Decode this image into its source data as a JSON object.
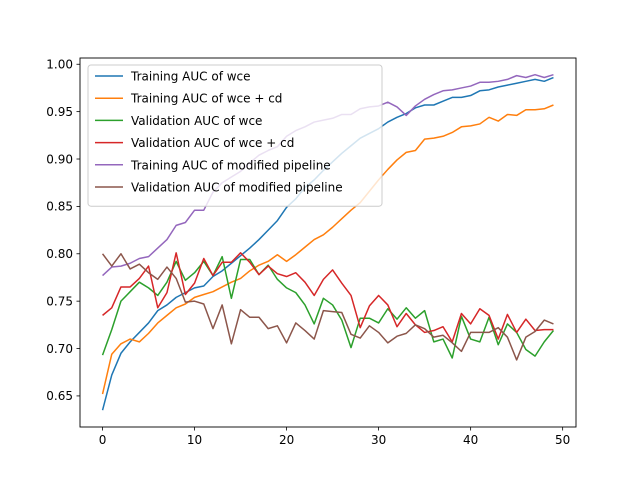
{
  "chart_data": {
    "type": "line",
    "title": "",
    "xlabel": "",
    "ylabel": "",
    "xlim": [
      -2.45,
      51.45
    ],
    "ylim": [
      0.6172,
      1.0066
    ],
    "xticks": [
      0,
      10,
      20,
      30,
      40,
      50
    ],
    "xtick_labels": [
      "0",
      "10",
      "20",
      "30",
      "40",
      "50"
    ],
    "yticks": [
      0.65,
      0.7,
      0.75,
      0.8,
      0.85,
      0.9,
      0.95,
      1.0
    ],
    "ytick_labels": [
      "0.65",
      "0.70",
      "0.75",
      "0.80",
      "0.85",
      "0.90",
      "0.95",
      "1.00"
    ],
    "grid": false,
    "legend_position": "upper-left",
    "x": [
      0,
      1,
      2,
      3,
      4,
      5,
      6,
      7,
      8,
      9,
      10,
      11,
      12,
      13,
      14,
      15,
      16,
      17,
      18,
      19,
      20,
      21,
      22,
      23,
      24,
      25,
      26,
      27,
      28,
      29,
      30,
      31,
      32,
      33,
      34,
      35,
      36,
      37,
      38,
      39,
      40,
      41,
      42,
      43,
      44,
      45,
      46,
      47,
      48,
      49
    ],
    "series": [
      {
        "name": "Training AUC of wce",
        "color": "#1f77b4",
        "values": [
          0.635,
          0.672,
          0.695,
          0.707,
          0.717,
          0.727,
          0.74,
          0.746,
          0.754,
          0.759,
          0.764,
          0.766,
          0.776,
          0.782,
          0.79,
          0.798,
          0.806,
          0.815,
          0.825,
          0.835,
          0.849,
          0.858,
          0.87,
          0.878,
          0.888,
          0.897,
          0.906,
          0.914,
          0.922,
          0.927,
          0.932,
          0.939,
          0.944,
          0.948,
          0.954,
          0.957,
          0.957,
          0.961,
          0.965,
          0.965,
          0.967,
          0.972,
          0.973,
          0.976,
          0.978,
          0.98,
          0.982,
          0.984,
          0.982,
          0.986
        ]
      },
      {
        "name": "Training AUC of wce + cd",
        "color": "#ff7f0e",
        "values": [
          0.652,
          0.694,
          0.705,
          0.71,
          0.707,
          0.716,
          0.727,
          0.735,
          0.743,
          0.747,
          0.754,
          0.757,
          0.76,
          0.765,
          0.77,
          0.774,
          0.782,
          0.788,
          0.792,
          0.799,
          0.792,
          0.799,
          0.807,
          0.815,
          0.82,
          0.828,
          0.837,
          0.846,
          0.854,
          0.866,
          0.878,
          0.889,
          0.899,
          0.907,
          0.909,
          0.921,
          0.922,
          0.924,
          0.928,
          0.934,
          0.935,
          0.937,
          0.944,
          0.94,
          0.947,
          0.946,
          0.952,
          0.952,
          0.953,
          0.957
        ]
      },
      {
        "name": "Validation AUC of wce",
        "color": "#2ca02c",
        "values": [
          0.693,
          0.72,
          0.75,
          0.76,
          0.77,
          0.764,
          0.756,
          0.77,
          0.792,
          0.772,
          0.78,
          0.792,
          0.777,
          0.797,
          0.753,
          0.794,
          0.794,
          0.778,
          0.788,
          0.773,
          0.764,
          0.759,
          0.746,
          0.726,
          0.753,
          0.746,
          0.73,
          0.701,
          0.732,
          0.732,
          0.727,
          0.742,
          0.731,
          0.743,
          0.732,
          0.74,
          0.707,
          0.71,
          0.69,
          0.734,
          0.71,
          0.707,
          0.733,
          0.704,
          0.726,
          0.717,
          0.699,
          0.692,
          0.707,
          0.719
        ]
      },
      {
        "name": "Validation AUC of wce + cd",
        "color": "#d62728",
        "values": [
          0.735,
          0.743,
          0.765,
          0.765,
          0.774,
          0.787,
          0.743,
          0.759,
          0.801,
          0.757,
          0.769,
          0.795,
          0.777,
          0.791,
          0.791,
          0.801,
          0.791,
          0.778,
          0.787,
          0.779,
          0.776,
          0.78,
          0.77,
          0.756,
          0.773,
          0.783,
          0.769,
          0.756,
          0.722,
          0.745,
          0.756,
          0.746,
          0.723,
          0.737,
          0.725,
          0.717,
          0.719,
          0.723,
          0.707,
          0.737,
          0.726,
          0.742,
          0.735,
          0.71,
          0.736,
          0.717,
          0.731,
          0.719,
          0.72,
          0.72
        ]
      },
      {
        "name": "Training AUC of modified pipeline",
        "color": "#9467bd",
        "values": [
          0.777,
          0.786,
          0.787,
          0.79,
          0.795,
          0.797,
          0.806,
          0.815,
          0.83,
          0.833,
          0.846,
          0.846,
          0.865,
          0.875,
          0.881,
          0.887,
          0.896,
          0.904,
          0.909,
          0.913,
          0.924,
          0.93,
          0.934,
          0.939,
          0.941,
          0.943,
          0.947,
          0.947,
          0.953,
          0.955,
          0.956,
          0.96,
          0.955,
          0.946,
          0.956,
          0.963,
          0.968,
          0.972,
          0.973,
          0.975,
          0.977,
          0.981,
          0.981,
          0.982,
          0.984,
          0.988,
          0.986,
          0.989,
          0.986,
          0.989
        ]
      },
      {
        "name": "Validation AUC of modified pipeline",
        "color": "#8c564b",
        "values": [
          0.8,
          0.787,
          0.8,
          0.784,
          0.789,
          0.78,
          0.773,
          0.786,
          0.774,
          0.749,
          0.75,
          0.747,
          0.721,
          0.746,
          0.705,
          0.741,
          0.733,
          0.733,
          0.721,
          0.724,
          0.706,
          0.727,
          0.719,
          0.71,
          0.74,
          0.739,
          0.738,
          0.715,
          0.711,
          0.724,
          0.717,
          0.706,
          0.713,
          0.716,
          0.725,
          0.721,
          0.712,
          0.714,
          0.706,
          0.697,
          0.717,
          0.717,
          0.717,
          0.722,
          0.712,
          0.688,
          0.712,
          0.718,
          0.73,
          0.726
        ]
      }
    ]
  }
}
